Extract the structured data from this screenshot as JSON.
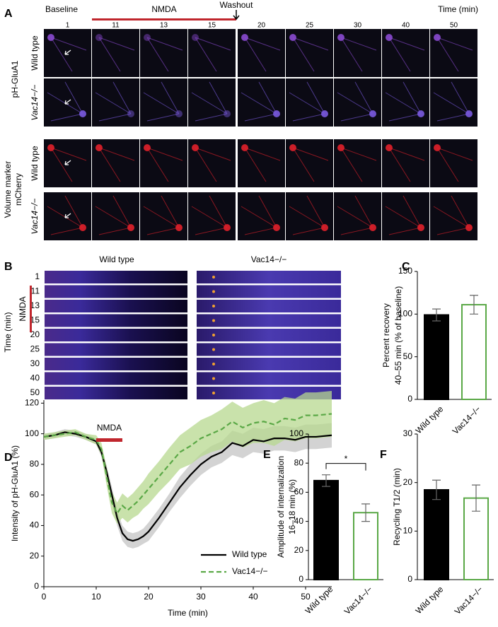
{
  "panel_a": {
    "label": "A",
    "baseline": "Baseline",
    "treatment": "NMDA",
    "washout": "Washout",
    "time_axis": "Time (min)",
    "times": [
      1,
      11,
      13,
      15,
      20,
      25,
      30,
      40,
      50
    ],
    "rows": [
      "Wild type",
      "Vac14−/−",
      "Wild type",
      "Vac14−/−"
    ],
    "groups": [
      [
        "pH-GluA1"
      ],
      [
        "Volume marker",
        "mCherry"
      ]
    ]
  },
  "panel_b": {
    "label": "B",
    "columns": [
      "Wild type",
      "Vac14−/−"
    ],
    "times": [
      1,
      11,
      13,
      15,
      20,
      25,
      30,
      40,
      50
    ],
    "treatment": "NMDA",
    "time_axis": "Time (min)"
  },
  "chart_data": [
    {
      "type": "bar",
      "label": "C",
      "ylabel": [
        "Percent recovery",
        "40–55 min (% of baseline)"
      ],
      "categories": [
        "Wild type",
        "Vac14−/−"
      ],
      "values": [
        99,
        111
      ],
      "errors": [
        7,
        11
      ],
      "colors": [
        "#000000",
        "#ffffff"
      ],
      "edgecolors": [
        "#000000",
        "#5aa846"
      ],
      "ylim": [
        0,
        150
      ],
      "yticks": [
        0,
        50,
        100,
        150
      ]
    },
    {
      "type": "line",
      "label": "D",
      "xlabel": "Time (min)",
      "ylabel": "Intensity of pH-GluA1 (%)",
      "annotation": {
        "text": "NMDA",
        "x": [
          10,
          15
        ],
        "color": "#c0262d"
      },
      "x": [
        0,
        2,
        4,
        6,
        8,
        10,
        11,
        12,
        13,
        14,
        15,
        16,
        17,
        18,
        19,
        20,
        22,
        24,
        26,
        28,
        30,
        32,
        34,
        36,
        38,
        40,
        42,
        44,
        46,
        48,
        50,
        52,
        55
      ],
      "series": [
        {
          "name": "Wild type",
          "color": "#000000",
          "band_color": "#c4c4c4",
          "linestyle": "solid",
          "values": [
            98,
            99,
            101,
            100,
            98,
            95,
            88,
            75,
            60,
            45,
            35,
            31,
            30,
            31,
            33,
            36,
            45,
            55,
            65,
            73,
            80,
            85,
            88,
            94,
            92,
            96,
            95,
            97,
            97,
            96,
            98,
            98,
            99
          ],
          "errors": [
            2,
            2,
            2,
            2,
            2,
            2,
            3,
            4,
            5,
            5,
            5,
            5,
            5,
            5,
            5,
            6,
            6,
            6,
            7,
            7,
            7,
            7,
            7,
            8,
            8,
            8,
            8,
            8,
            8,
            8,
            8,
            8,
            8
          ]
        },
        {
          "name": "Vac14−/−",
          "color": "#5aa846",
          "band_color": "#b7d88f",
          "linestyle": "dashed",
          "values": [
            98,
            99,
            100,
            101,
            98,
            96,
            90,
            72,
            55,
            48,
            53,
            50,
            53,
            56,
            60,
            64,
            72,
            80,
            88,
            92,
            97,
            100,
            103,
            108,
            104,
            107,
            108,
            106,
            110,
            109,
            112,
            112,
            113
          ],
          "errors": [
            2,
            2,
            2,
            2,
            2,
            3,
            4,
            6,
            7,
            7,
            8,
            8,
            8,
            9,
            9,
            10,
            10,
            11,
            11,
            12,
            12,
            12,
            13,
            13,
            13,
            13,
            14,
            14,
            14,
            14,
            15,
            15,
            15
          ]
        }
      ],
      "xlim": [
        0,
        55
      ],
      "xticks": [
        0,
        10,
        20,
        30,
        40,
        50
      ],
      "ylim": [
        0,
        122
      ],
      "yticks": [
        0,
        20,
        40,
        60,
        80,
        100,
        120
      ],
      "legend": "lower right"
    },
    {
      "type": "bar",
      "label": "E",
      "ylabel": [
        "Amplitude of internalization",
        "16–18 min (%)"
      ],
      "categories": [
        "Wild type",
        "Vac14−/−"
      ],
      "values": [
        68,
        46
      ],
      "errors": [
        4,
        6
      ],
      "colors": [
        "#000000",
        "#ffffff"
      ],
      "edgecolors": [
        "#000000",
        "#5aa846"
      ],
      "ylim": [
        0,
        100
      ],
      "yticks": [
        0,
        20,
        40,
        60,
        80,
        100
      ],
      "significance": "*"
    },
    {
      "type": "bar",
      "label": "F",
      "ylabel": [
        "Recycling T1/2 (min)"
      ],
      "categories": [
        "Wild type",
        "Vac14−/−"
      ],
      "values": [
        18.5,
        16.8
      ],
      "errors": [
        2,
        2.7
      ],
      "colors": [
        "#000000",
        "#ffffff"
      ],
      "edgecolors": [
        "#000000",
        "#5aa846"
      ],
      "ylim": [
        0,
        30
      ],
      "yticks": [
        0,
        10,
        20,
        30
      ]
    }
  ]
}
